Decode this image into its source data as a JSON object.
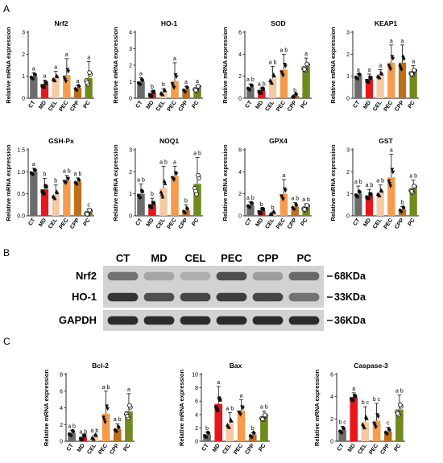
{
  "panel_labels": [
    "A",
    "B",
    "C"
  ],
  "colors": {
    "CT": "#6b6b6b",
    "MD": "#e8161b",
    "CEL": "#f6c9a1",
    "PEC": "#f59b4b",
    "CPP": "#bd6f1b",
    "PC": "#708a1e"
  },
  "chart_data": [
    {
      "type": "bar",
      "title": "Nrf2",
      "ylabel": "Relative mRNA expression",
      "ylim": [
        0,
        3
      ],
      "yticks": [
        "0",
        "1",
        "2",
        "3"
      ],
      "categories": [
        "CT",
        "MD",
        "CEL",
        "PEC",
        "CPP",
        "PC"
      ],
      "values": [
        1.0,
        0.62,
        0.92,
        1.05,
        0.48,
        0.92
      ],
      "errors": [
        0.15,
        0.2,
        0.3,
        0.75,
        0.1,
        0.75
      ],
      "sig": [
        "a",
        "a",
        "a",
        "a",
        "a",
        "a"
      ]
    },
    {
      "type": "bar",
      "title": "HO-1",
      "ylabel": "Relative mRNA expression",
      "ylim": [
        0,
        4
      ],
      "yticks": [
        "0",
        "1",
        "2",
        "3",
        "4"
      ],
      "categories": [
        "CT",
        "MD",
        "CEL",
        "PEC",
        "CPP",
        "PC"
      ],
      "values": [
        1.0,
        0.28,
        0.38,
        1.05,
        0.55,
        0.6
      ],
      "errors": [
        0.25,
        0.15,
        0.2,
        1.1,
        0.18,
        0.18
      ],
      "sig": [
        "a",
        "b",
        "b",
        "a",
        "a",
        "a"
      ]
    },
    {
      "type": "bar",
      "title": "SOD",
      "ylabel": "Relative mRNA expression",
      "ylim": [
        0,
        6
      ],
      "yticks": [
        "0",
        "2",
        "4",
        "6"
      ],
      "categories": [
        "CT",
        "MD",
        "CEL",
        "PEC",
        "CPP",
        "PC"
      ],
      "values": [
        1.0,
        0.7,
        1.8,
        2.6,
        0.22,
        2.85
      ],
      "errors": [
        0.3,
        0.2,
        1.1,
        1.4,
        0.1,
        0.8
      ],
      "sig": [
        "a b",
        "a b",
        "a b",
        "a b",
        "b",
        "a"
      ]
    },
    {
      "type": "bar",
      "title": "KEAP1",
      "ylabel": "Relative mRNA expression",
      "ylim": [
        0,
        3
      ],
      "yticks": [
        "0",
        "1",
        "2",
        "3"
      ],
      "categories": [
        "CT",
        "MD",
        "CEL",
        "PEC",
        "CPP",
        "PC"
      ],
      "values": [
        1.0,
        0.85,
        1.05,
        1.62,
        1.62,
        1.18
      ],
      "errors": [
        0.1,
        0.25,
        0.25,
        0.8,
        0.8,
        0.3
      ],
      "sig": [
        "a",
        "a",
        "a",
        "a",
        "a",
        "a"
      ]
    },
    {
      "type": "bar",
      "title": "GSH-Px",
      "ylabel": "Relative mRNA expression",
      "ylim": [
        0,
        1.5
      ],
      "yticks": [
        "0.0",
        "0.5",
        "1.0",
        "1.5"
      ],
      "categories": [
        "CT",
        "MD",
        "CEL",
        "PEC",
        "CPP",
        "PC"
      ],
      "values": [
        1.0,
        0.6,
        0.48,
        0.8,
        0.78,
        0.08
      ],
      "errors": [
        0.08,
        0.25,
        0.22,
        0.12,
        0.08,
        0.08
      ],
      "sig": [
        "a",
        "b",
        "b",
        "a b",
        "a b",
        "c"
      ]
    },
    {
      "type": "bar",
      "title": "NOQ1",
      "ylabel": "Relative mRNA expression",
      "ylim": [
        0,
        3
      ],
      "yticks": [
        "0",
        "1",
        "2",
        "3"
      ],
      "categories": [
        "CT",
        "MD",
        "CEL",
        "PEC",
        "CPP",
        "PC"
      ],
      "values": [
        1.0,
        0.5,
        1.25,
        1.8,
        0.25,
        1.45
      ],
      "errors": [
        0.45,
        0.3,
        1.0,
        0.45,
        0.25,
        1.2
      ],
      "sig": [
        "a b",
        "b",
        "a b",
        "a",
        "b",
        "a b"
      ]
    },
    {
      "type": "bar",
      "title": "GPX4",
      "ylabel": "Relative mRNA expression",
      "ylim": [
        0,
        6
      ],
      "yticks": [
        "0",
        "2",
        "4",
        "6"
      ],
      "categories": [
        "CT",
        "MD",
        "CEL",
        "PEC",
        "CPP",
        "PC"
      ],
      "values": [
        1.0,
        0.45,
        0.2,
        2.0,
        0.85,
        0.75
      ],
      "errors": [
        0.25,
        0.2,
        0.15,
        1.3,
        0.35,
        0.35
      ],
      "sig": [
        "a b",
        "b",
        "b",
        "a",
        "a b",
        "a b"
      ]
    },
    {
      "type": "bar",
      "title": "GST",
      "ylabel": "Relative mRNA expression",
      "ylim": [
        0,
        3
      ],
      "yticks": [
        "0",
        "1",
        "2",
        "3"
      ],
      "categories": [
        "CT",
        "MD",
        "CEL",
        "PEC",
        "CPP",
        "PC"
      ],
      "values": [
        1.0,
        0.9,
        1.05,
        1.75,
        0.3,
        1.22
      ],
      "errors": [
        0.35,
        0.3,
        0.35,
        1.05,
        0.12,
        0.4
      ],
      "sig": [
        "a b",
        "a b",
        "a b",
        "a",
        "b",
        "a b"
      ]
    },
    {
      "type": "bar",
      "title": "Bcl-2",
      "ylabel": "Relative mRNA expression",
      "ylim": [
        0,
        8
      ],
      "yticks": [
        "0",
        "2",
        "4",
        "6",
        "8"
      ],
      "categories": [
        "CT",
        "MD",
        "CEL",
        "PEC",
        "CPP",
        "PC"
      ],
      "values": [
        1.0,
        0.45,
        0.55,
        3.3,
        1.5,
        3.6
      ],
      "errors": [
        0.3,
        0.2,
        0.2,
        2.7,
        0.6,
        2.1
      ],
      "sig": [
        "a b",
        "a b",
        "a b",
        "a b",
        "a b",
        "a"
      ]
    },
    {
      "type": "bar",
      "title": "Bax",
      "ylabel": "Relative mRNA expression",
      "ylim": [
        0,
        10
      ],
      "yticks": [
        "0",
        "2",
        "4",
        "6",
        "8",
        "10"
      ],
      "categories": [
        "CT",
        "MD",
        "CEL",
        "PEC",
        "CPP",
        "PC"
      ],
      "values": [
        1.0,
        5.6,
        2.7,
        4.6,
        1.0,
        3.6
      ],
      "errors": [
        0.35,
        2.6,
        1.6,
        1.6,
        0.3,
        0.9
      ],
      "sig": [
        "b",
        "a",
        "a b",
        "a",
        "b",
        "a b"
      ]
    },
    {
      "type": "bar",
      "title": "Caspase-3",
      "ylabel": "Relative mRNA expression",
      "ylim": [
        0,
        6
      ],
      "yticks": [
        "0",
        "2",
        "4",
        "6"
      ],
      "categories": [
        "CT",
        "MD",
        "CEL",
        "PEC",
        "CPP",
        "PC"
      ],
      "values": [
        1.0,
        3.9,
        1.75,
        1.85,
        0.9,
        2.85
      ],
      "errors": [
        0.35,
        0.45,
        1.35,
        1.55,
        0.35,
        1.3
      ],
      "sig": [
        "b c",
        "a",
        "b c",
        "b c",
        "c",
        "a b"
      ]
    }
  ],
  "western_blot": {
    "lanes": [
      "CT",
      "MD",
      "CEL",
      "PEC",
      "CPP",
      "PC"
    ],
    "bands": [
      {
        "protein": "Nrf2",
        "size": "68KDa"
      },
      {
        "protein": "HO-1",
        "size": "33KDa"
      },
      {
        "protein": "GAPDH",
        "size": "36KDa"
      }
    ]
  }
}
